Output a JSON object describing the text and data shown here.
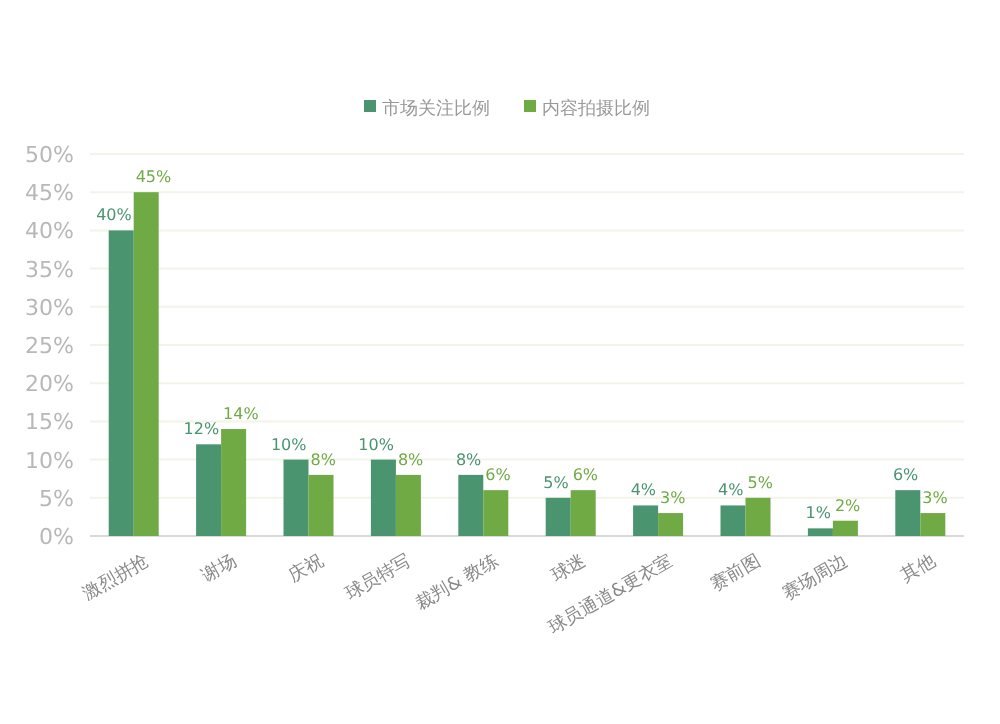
{
  "chart_data": {
    "type": "bar",
    "categories": [
      "激烈拼抢",
      "谢场",
      "庆祝",
      "球员特写",
      "裁判& 教练",
      "球迷",
      "球员通道&更衣室",
      "赛前图",
      "赛场周边",
      "其他"
    ],
    "series": [
      {
        "name": "市场关注比例",
        "color": "#4a9470",
        "values": [
          40,
          12,
          10,
          10,
          8,
          5,
          4,
          4,
          1,
          6
        ]
      },
      {
        "name": "内容拍摄比例",
        "color": "#6faa44",
        "values": [
          45,
          14,
          8,
          8,
          6,
          6,
          3,
          5,
          2,
          3
        ]
      }
    ],
    "ylim": [
      0,
      50
    ],
    "yticks": [
      {
        "value": 0,
        "label": "0%"
      },
      {
        "value": 5,
        "label": "5%"
      },
      {
        "value": 10,
        "label": "10%"
      },
      {
        "value": 15,
        "label": "15%"
      },
      {
        "value": 20,
        "label": "20%"
      },
      {
        "value": 25,
        "label": "25%"
      },
      {
        "value": 30,
        "label": "30%"
      },
      {
        "value": 35,
        "label": "35%"
      },
      {
        "value": 40,
        "label": "40%"
      },
      {
        "value": 45,
        "label": "45%"
      },
      {
        "value": 50,
        "label": "50%"
      }
    ],
    "value_labels": [
      [
        "40%",
        "12%",
        "10%",
        "10%",
        "8%",
        "5%",
        "4%",
        "4%",
        "1%",
        "6%"
      ],
      [
        "45%",
        "14%",
        "8%",
        "8%",
        "6%",
        "6%",
        "3%",
        "5%",
        "2%",
        "3%"
      ]
    ],
    "grid": "y",
    "legend": "top"
  }
}
